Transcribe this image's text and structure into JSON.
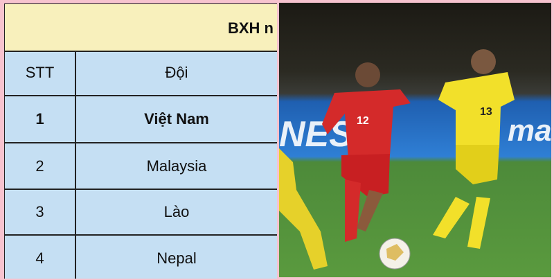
{
  "table": {
    "title": "BXH n",
    "headers": [
      "STT",
      "Đội"
    ],
    "rows": [
      {
        "rank": "1",
        "team": "Việt Nam"
      },
      {
        "rank": "2",
        "team": "Malaysia"
      },
      {
        "rank": "3",
        "team": "Lào"
      },
      {
        "rank": "4",
        "team": "Nepal"
      }
    ]
  },
  "photo": {
    "ad_text": "NES",
    "ad_text_right": "ma",
    "player_red_number": "12",
    "player_yellow_number": "13",
    "colors": {
      "border": "#f7c3cf",
      "title_bg": "#f8f0bc",
      "cell_bg": "#c5dff3",
      "red_kit": "#d42a2a",
      "yellow_kit": "#f2e02a"
    }
  }
}
